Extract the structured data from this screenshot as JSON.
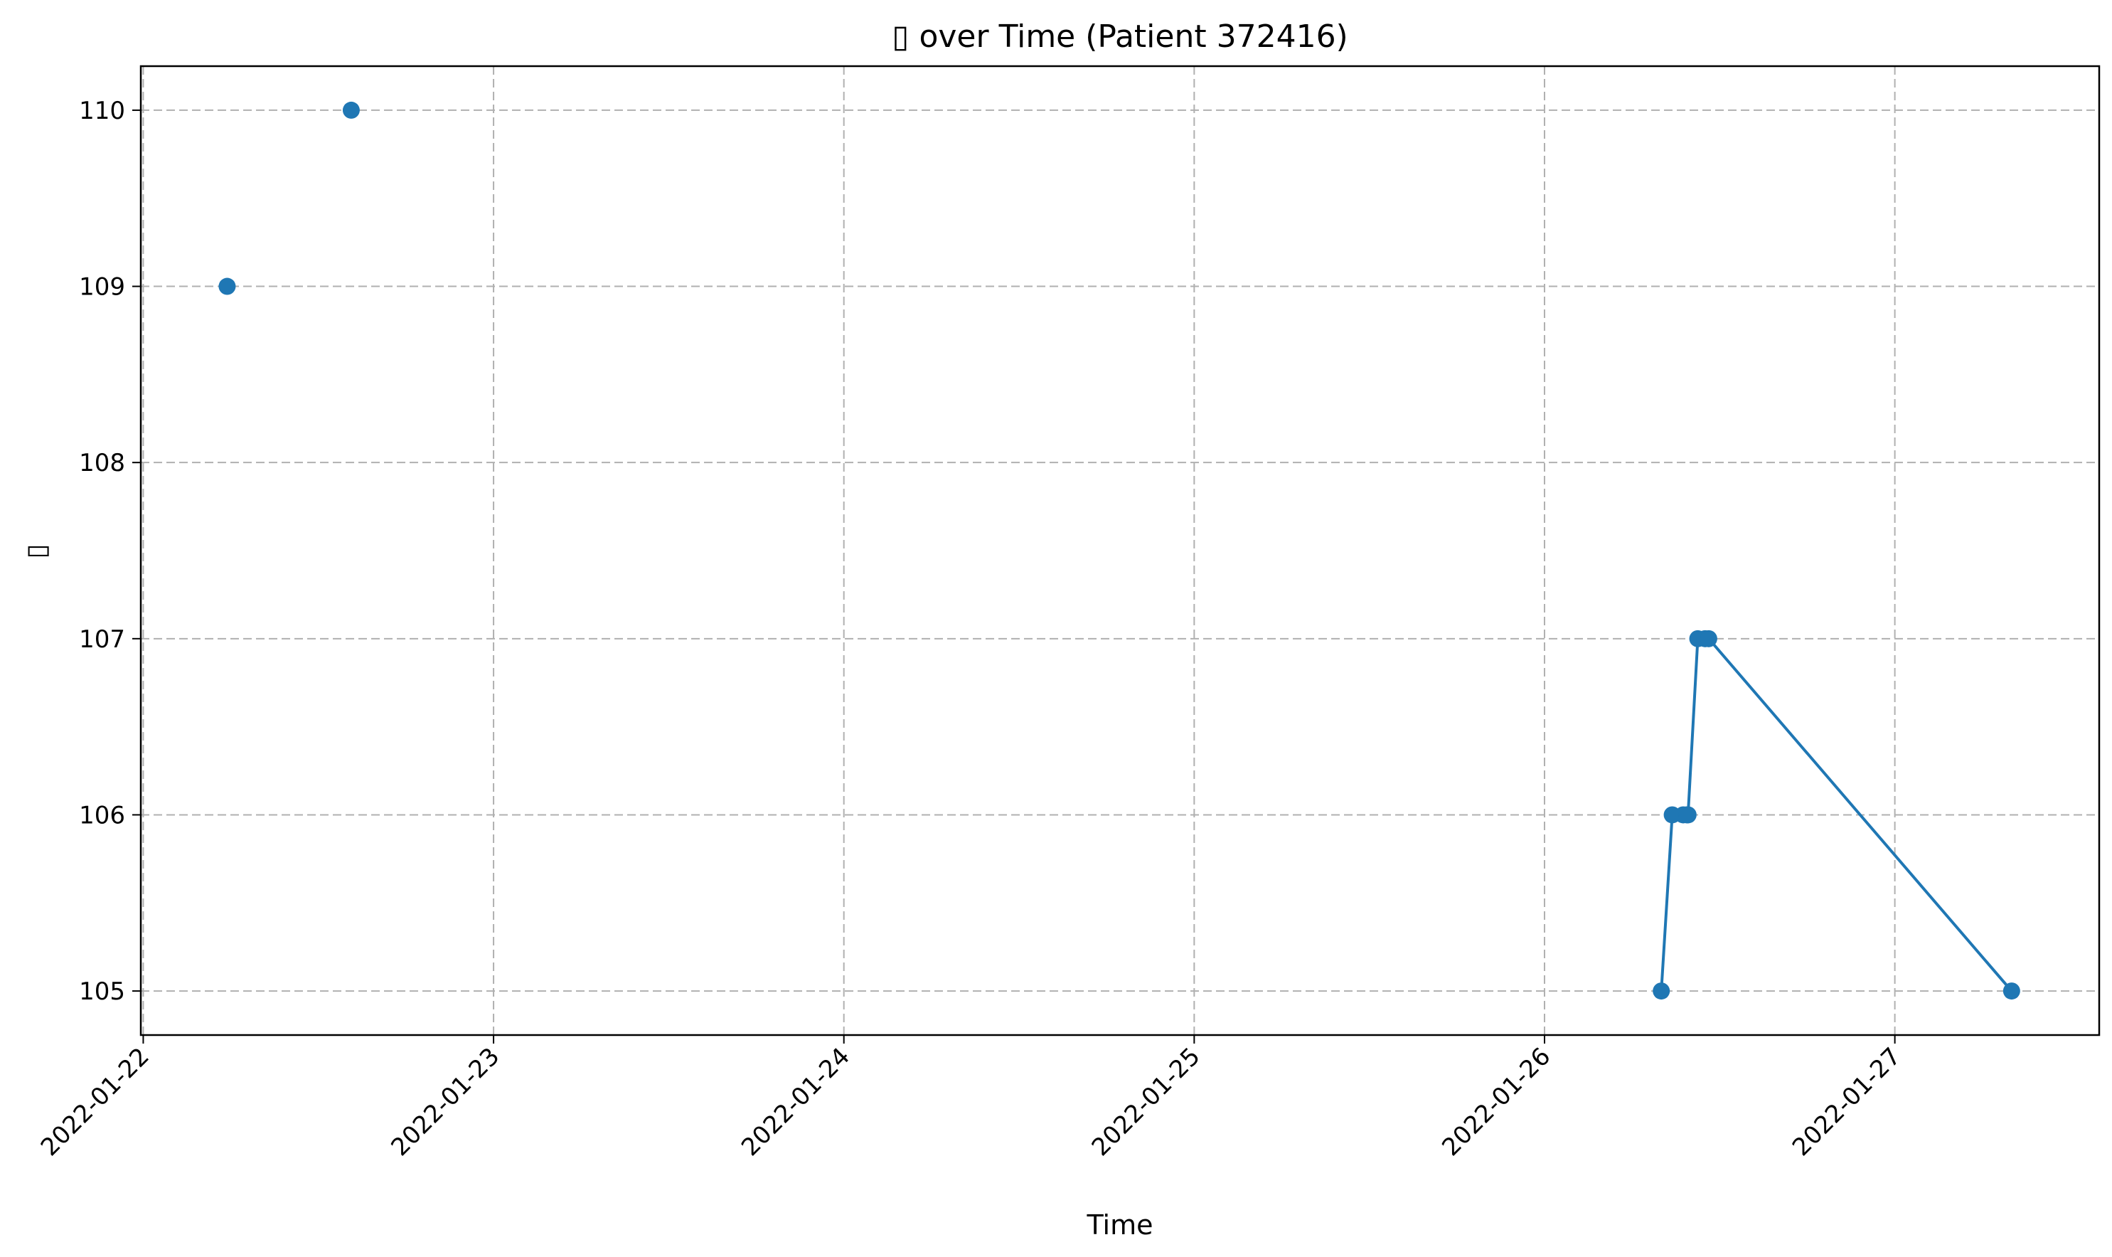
{
  "chart_data": {
    "type": "line",
    "title": "▯ over Time (Patient 372416)",
    "xlabel": "Time",
    "ylabel": "▯",
    "x_ticks": [
      "2022-01-22",
      "2022-01-23",
      "2022-01-24",
      "2022-01-25",
      "2022-01-26",
      "2022-01-27"
    ],
    "y_ticks": [
      105,
      106,
      107,
      108,
      109,
      110
    ],
    "xlim": [
      "2022-01-21 23:50",
      "2022-01-27 14:00"
    ],
    "ylim": [
      104.75,
      110.25
    ],
    "grid": true,
    "color": "#1f77b4",
    "series": [
      {
        "points": [
          {
            "x": "2022-01-22 05:45",
            "y": 109
          },
          {
            "x": "2022-01-22 14:15",
            "y": 110
          }
        ],
        "connected": false
      },
      {
        "points": [
          {
            "x": "2022-01-26 08:00",
            "y": 105
          },
          {
            "x": "2022-01-26 08:45",
            "y": 106
          },
          {
            "x": "2022-01-26 09:30",
            "y": 106
          },
          {
            "x": "2022-01-26 09:45",
            "y": 106
          },
          {
            "x": "2022-01-26 09:50",
            "y": 106
          },
          {
            "x": "2022-01-26 10:30",
            "y": 107
          },
          {
            "x": "2022-01-26 11:00",
            "y": 107
          },
          {
            "x": "2022-01-26 11:15",
            "y": 107
          },
          {
            "x": "2022-01-27 08:00",
            "y": 105
          }
        ],
        "connected": true
      }
    ]
  }
}
